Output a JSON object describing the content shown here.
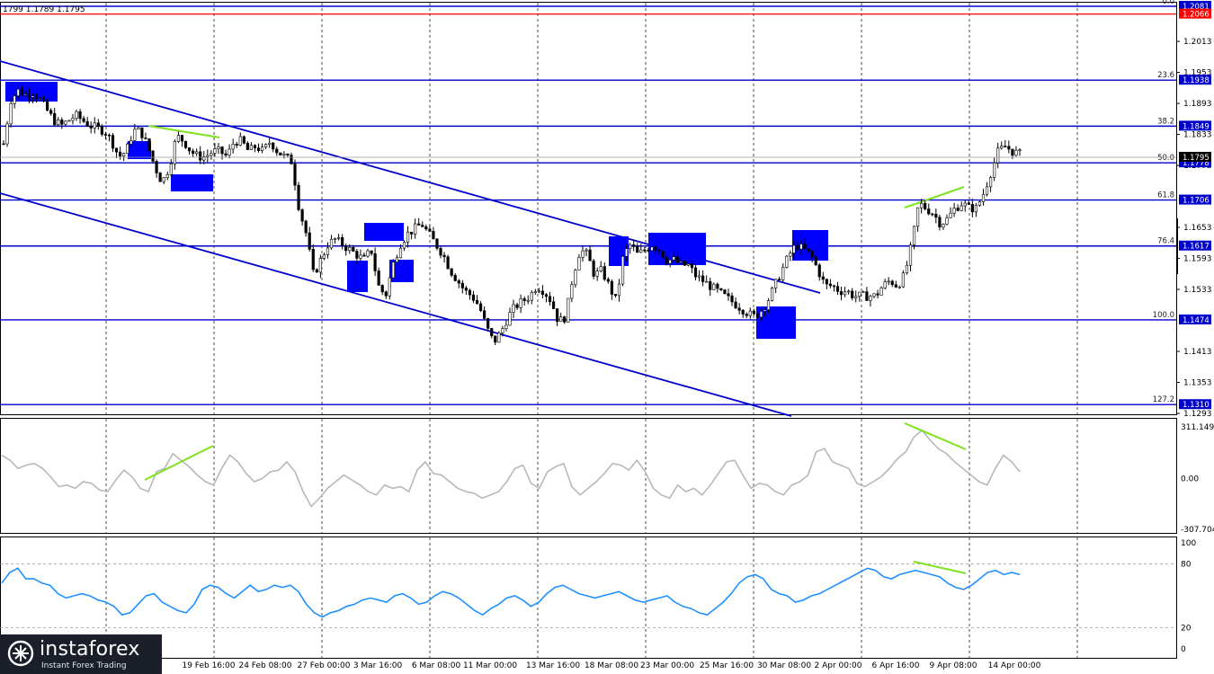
{
  "header": {
    "ohlc": "1799 1.1789 1.1795"
  },
  "chart_data": [
    {
      "type": "candlestick",
      "title": "",
      "price_range": [
        1.127,
        1.209
      ],
      "price_ticks": [
        "1.2013",
        "1.1953",
        "1.1893",
        "1.1833",
        "1.1773",
        "1.1653",
        "1.1593",
        "1.1533",
        "1.1413",
        "1.1353",
        "1.1293"
      ],
      "x_labels": [
        "19 Feb 16:00",
        "24 Feb 08:00",
        "27 Feb 00:00",
        "3 Mar 16:00",
        "6 Mar 08:00",
        "11 Mar 00:00",
        "13 Mar 16:00",
        "18 Mar 08:00",
        "23 Mar 00:00",
        "25 Mar 16:00",
        "30 Mar 08:00",
        "2 Apr 00:00",
        "6 Apr 16:00",
        "9 Apr 08:00",
        "14 Apr 00:00"
      ],
      "fib_levels": [
        {
          "label": "0.0",
          "price": "1.2081"
        },
        {
          "label": "23.6",
          "price": "1.1938"
        },
        {
          "label": "38.2",
          "price": "1.1849"
        },
        {
          "label": "50.0",
          "price": "1.1778"
        },
        {
          "label": "61.8",
          "price": "1.1706"
        },
        {
          "label": "76.4",
          "price": "1.1617"
        },
        {
          "label": "100.0",
          "price": "1.1474"
        },
        {
          "label": "127.2",
          "price": "1.1310"
        }
      ],
      "extra_lines": [
        {
          "price": "1.2066",
          "color": "#ff0000"
        }
      ],
      "current_price": "1.1795",
      "price_path": [
        1.1815,
        1.19,
        1.1918,
        1.191,
        1.1915,
        1.19,
        1.188,
        1.186,
        1.185,
        1.186,
        1.187,
        1.186,
        1.185,
        1.1845,
        1.184,
        1.182,
        1.179,
        1.18,
        1.184,
        1.184,
        1.181,
        1.177,
        1.174,
        1.177,
        1.183,
        1.182,
        1.18,
        1.179,
        1.179,
        1.18,
        1.18,
        1.179,
        1.182,
        1.182,
        1.18,
        1.181,
        1.18,
        1.182,
        1.18,
        1.179,
        1.178,
        1.169,
        1.164,
        1.156,
        1.159,
        1.162,
        1.163,
        1.162,
        1.161,
        1.16,
        1.159,
        1.161,
        1.154,
        1.152,
        1.158,
        1.162,
        1.164,
        1.165,
        1.166,
        1.164,
        1.162,
        1.16,
        1.157,
        1.155,
        1.153,
        1.152,
        1.15,
        1.146,
        1.143,
        1.145,
        1.148,
        1.15,
        1.151,
        1.152,
        1.154,
        1.153,
        1.151,
        1.147,
        1.148,
        1.156,
        1.161,
        1.16,
        1.156,
        1.157,
        1.154,
        1.151,
        1.16,
        1.162,
        1.16,
        1.161,
        1.162,
        1.161,
        1.159,
        1.159,
        1.158,
        1.158,
        1.156,
        1.155,
        1.154,
        1.153,
        1.152,
        1.151,
        1.15,
        1.149,
        1.148,
        1.149,
        1.151,
        1.154,
        1.157,
        1.16,
        1.162,
        1.161,
        1.16,
        1.157,
        1.154,
        1.154,
        1.153,
        1.153,
        1.152,
        1.152,
        1.152,
        1.152,
        1.154,
        1.155,
        1.154,
        1.156,
        1.162,
        1.17,
        1.169,
        1.168,
        1.166,
        1.167,
        1.169,
        1.17,
        1.169,
        1.169,
        1.172,
        1.176,
        1.18,
        1.181,
        1.18,
        1.1795
      ],
      "bullish_divergence": [
        [
          1.1858,
          1.1845
        ]
      ]
    },
    {
      "type": "line",
      "name": "CCI",
      "ticks": [
        "311.1497",
        "0.00",
        "-307.704"
      ],
      "range": [
        -307.704,
        311.1497
      ],
      "series": [
        140,
        110,
        60,
        80,
        90,
        60,
        10,
        -50,
        -40,
        -60,
        -20,
        -30,
        -70,
        -80,
        -10,
        50,
        10,
        -60,
        -80,
        40,
        60,
        150,
        110,
        70,
        20,
        -20,
        -40,
        60,
        140,
        100,
        30,
        -20,
        0,
        40,
        50,
        100,
        40,
        -80,
        -170,
        -120,
        -60,
        -20,
        20,
        -10,
        -40,
        -80,
        -100,
        -40,
        -60,
        -50,
        -80,
        50,
        100,
        30,
        20,
        -20,
        -60,
        -80,
        -90,
        -120,
        -100,
        -80,
        -20,
        60,
        80,
        -30,
        -60,
        40,
        70,
        90,
        -50,
        -100,
        -60,
        -20,
        30,
        90,
        80,
        50,
        110,
        40,
        -60,
        -100,
        -120,
        -40,
        -80,
        -60,
        -100,
        -40,
        30,
        100,
        110,
        20,
        -60,
        -30,
        -40,
        -80,
        -100,
        -40,
        -20,
        20,
        160,
        180,
        100,
        80,
        60,
        -30,
        -50,
        -20,
        10,
        60,
        120,
        160,
        250,
        290,
        230,
        180,
        150,
        100,
        60,
        20,
        -20,
        -40,
        60,
        140,
        100,
        40
      ],
      "divergence_segments": [
        [
          20,
          62
        ],
        [
          200,
          268
        ]
      ]
    },
    {
      "type": "line",
      "name": "Stochastic",
      "ticks": [
        "100",
        "80",
        "20",
        "0"
      ],
      "range": [
        0,
        100
      ],
      "levels": [
        80,
        20
      ],
      "series": [
        62,
        72,
        76,
        66,
        66,
        62,
        60,
        52,
        48,
        50,
        52,
        50,
        46,
        44,
        40,
        32,
        34,
        42,
        50,
        52,
        44,
        40,
        36,
        34,
        42,
        56,
        60,
        58,
        52,
        48,
        54,
        60,
        54,
        56,
        60,
        58,
        60,
        54,
        42,
        34,
        30,
        34,
        36,
        40,
        42,
        46,
        48,
        46,
        44,
        50,
        52,
        48,
        42,
        44,
        50,
        54,
        52,
        48,
        42,
        36,
        32,
        38,
        42,
        48,
        50,
        46,
        40,
        44,
        52,
        58,
        60,
        56,
        52,
        50,
        48,
        50,
        52,
        54,
        50,
        46,
        44,
        46,
        48,
        50,
        44,
        40,
        38,
        34,
        32,
        38,
        44,
        52,
        62,
        68,
        70,
        66,
        56,
        52,
        50,
        44,
        46,
        50,
        52,
        56,
        60,
        64,
        68,
        72,
        76,
        74,
        68,
        66,
        70,
        72,
        74,
        72,
        70,
        68,
        62,
        58,
        56,
        60,
        66,
        72,
        74,
        70,
        72,
        70
      ],
      "divergence_segments": [
        [
          80,
          72
        ]
      ]
    }
  ],
  "logo": {
    "brand": "instaforex",
    "slogan": "Instant Forex Trading"
  }
}
